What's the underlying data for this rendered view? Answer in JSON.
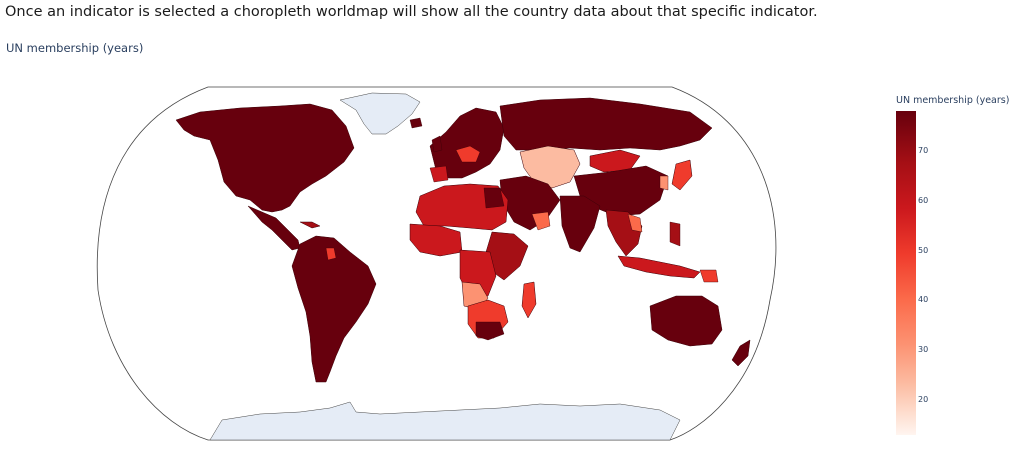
{
  "intro_text": "Once an indicator is selected a choropleth worldmap will show all the country data about that specific indicator.",
  "chart_data": {
    "type": "choropleth",
    "title": "UN membership (years)",
    "projection": "natural earth",
    "colorscale": "Reds",
    "missing_color": "#e5ecf6",
    "colorbar": {
      "title": "UN membership (years)",
      "range": [
        13,
        78
      ],
      "ticks": [
        70,
        60,
        50,
        40,
        30,
        20
      ]
    }
  }
}
